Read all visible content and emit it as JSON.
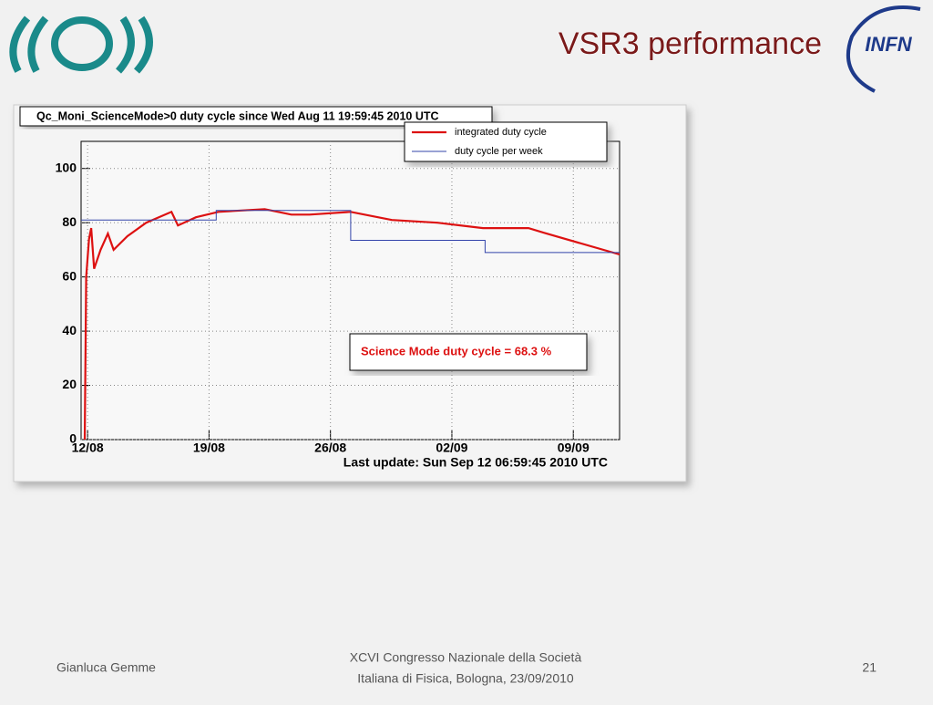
{
  "slide": {
    "title": "VSR3 performance",
    "logo_text": "INFN",
    "footer_left": "Gianluca Gemme",
    "footer_center": [
      "XCVI Congresso Nazionale della Società",
      "Italiana di Fisica, Bologna, 23/09/2010"
    ],
    "page_number": "21"
  },
  "chart_data": {
    "type": "line",
    "title": "Qc_Moni_ScienceMode>0 duty cycle since Wed Aug 11 19:59:45 2010 UTC",
    "annotations": [
      "Science Mode duty cycle = 68.3 %",
      "Last update: Sun Sep 12 06:59:45 2010 UTC"
    ],
    "xlim": [
      "2010-08-11T15:00",
      "2010-09-11T16:00"
    ],
    "xticks": [
      {
        "value": "2010-08-12T00:00",
        "label": "12/08"
      },
      {
        "value": "2010-08-19T00:00",
        "label": "19/08"
      },
      {
        "value": "2010-08-26T00:00",
        "label": "26/08"
      },
      {
        "value": "2010-09-02T00:00",
        "label": "02/09"
      },
      {
        "value": "2010-09-09T00:00",
        "label": "09/09"
      }
    ],
    "ylim": [
      0,
      110
    ],
    "yticks": [
      0,
      20,
      40,
      60,
      80,
      100
    ],
    "grid": true,
    "legend": "top-right",
    "series": [
      {
        "name": "integrated duty cycle",
        "color": "#dd1111",
        "x": [
          "2010-08-11T20:00",
          "2010-08-11T22:00",
          "2010-08-12T02:00",
          "2010-08-12T05:00",
          "2010-08-12T09:00",
          "2010-08-12T18:00",
          "2010-08-13T04:00",
          "2010-08-13T12:00",
          "2010-08-14T07:00",
          "2010-08-15T09:00",
          "2010-08-16T20:00",
          "2010-08-17T05:00",
          "2010-08-18T06:00",
          "2010-08-19T13:00",
          "2010-08-22T05:00",
          "2010-08-23T18:00",
          "2010-08-24T19:00",
          "2010-08-27T04:00",
          "2010-08-29T13:00",
          "2010-09-01T04:00",
          "2010-09-03T19:00",
          "2010-09-06T10:00",
          "2010-09-07T11:00",
          "2010-09-11T16:00"
        ],
        "values": [
          0,
          60,
          74,
          78,
          63,
          70,
          76,
          70,
          75,
          80,
          84,
          79,
          82,
          84,
          85,
          83,
          83,
          84,
          81,
          80,
          78,
          78,
          76,
          68.3
        ]
      },
      {
        "name": "duty cycle per week",
        "color": "#3344aa",
        "x": [
          "2010-08-11T15:00",
          "2010-08-19T10:00",
          "2010-08-19T10:00",
          "2010-08-27T04:00",
          "2010-08-27T04:00",
          "2010-09-03T22:00",
          "2010-09-03T22:00",
          "2010-09-11T16:00"
        ],
        "values": [
          81,
          81,
          84.5,
          84.5,
          73.5,
          73.5,
          69,
          69
        ]
      }
    ]
  }
}
